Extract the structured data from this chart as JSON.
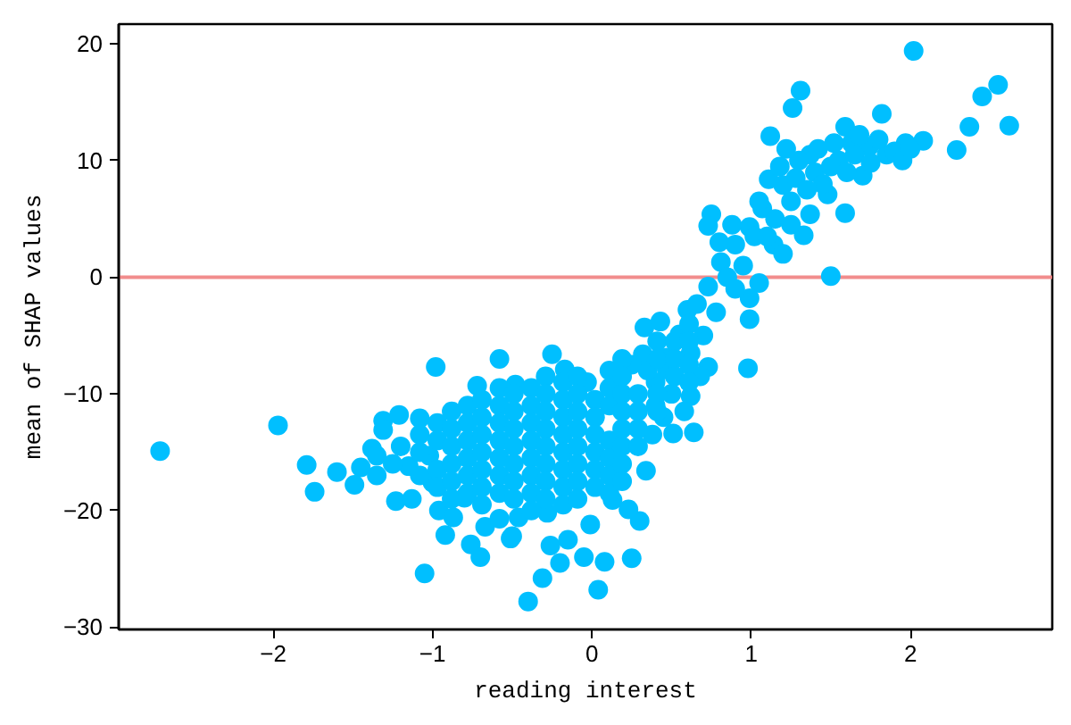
{
  "chart_data": {
    "type": "scatter",
    "xlabel": "reading interest",
    "ylabel": "mean of SHAP values",
    "color": "#00bfff",
    "marker": "circle",
    "grid": false,
    "xlim": [
      -2.97,
      2.89
    ],
    "ylim": [
      -30.2,
      21.7
    ],
    "xticks": [
      {
        "value": -2,
        "label": "−2"
      },
      {
        "value": -1,
        "label": "−1"
      },
      0,
      1,
      2
    ],
    "yticks": [
      {
        "value": -30,
        "label": "−30"
      },
      {
        "value": -20,
        "label": "−20"
      },
      {
        "value": -10,
        "label": "−10"
      },
      0,
      10,
      20
    ],
    "ref_lines": [
      {
        "axis": "y",
        "value": 0,
        "color": "#f08080"
      }
    ],
    "x": [
      -2.71,
      -1.97,
      -1.79,
      -1.74,
      -1.6,
      -1.49,
      -1.45,
      -1.38,
      -1.35,
      -1.35,
      -1.31,
      -1.31,
      -1.23,
      -1.21,
      -1.13,
      -1.15,
      -1.08,
      -1.05,
      -0.98,
      -0.96,
      -0.92,
      -0.87,
      -0.76,
      -0.7,
      -0.67,
      -0.58,
      -0.72,
      -0.51,
      -0.46,
      -0.4,
      -0.48,
      -1.02,
      -1.0,
      -0.8,
      -1.25,
      -1.2,
      -0.25,
      -0.17,
      -0.03,
      -0.31,
      -0.2,
      -0.05,
      0.04,
      0.08,
      0.25,
      -0.15,
      -0.5,
      -0.58,
      -0.28,
      -0.01,
      0.3,
      0.23,
      0.13,
      0.64,
      0.51,
      0.34,
      0.4,
      0.62,
      0.73,
      0.47,
      0.32,
      -0.26,
      2.02,
      2.55,
      2.45,
      2.37,
      2.62,
      2.29,
      2.08,
      1.97,
      1.85,
      1.82,
      1.59,
      1.31,
      1.26,
      1.12,
      1.59,
      1.5,
      0.98,
      0.99,
      0.75,
      0.73,
      1.33,
      1.74,
      1.7,
      1.48,
      1.37,
      1.14,
      1.05,
      0.99,
      0.6,
      1.11,
      1.37,
      1.55,
      1.63,
      1.2,
      1.07,
      0.99,
      0.9,
      0.81,
      0.73,
      0.66,
      0.55,
      0.47,
      0.33,
      0.43,
      0.85,
      0.9,
      0.78,
      0.7,
      0.62,
      0.5,
      0.45,
      0.38,
      0.8,
      0.95,
      0.88,
      1.02,
      1.05,
      1.15,
      1.18,
      1.25,
      1.28,
      1.3,
      1.22,
      1.4,
      1.45,
      1.42,
      1.5,
      1.52,
      1.6,
      1.65,
      1.75,
      1.8,
      1.9,
      1.95,
      2.0,
      1.68,
      1.35,
      1.1,
      1.25,
      1.2,
      0.68,
      0.58,
      0.4,
      0.35,
      0.25,
      -1.08,
      -1.08,
      -1.08,
      -0.97,
      -0.97,
      -0.97,
      -0.97,
      -0.88,
      -0.88,
      -0.88,
      -0.88,
      -0.88,
      -0.88,
      -0.78,
      -0.78,
      -0.78,
      -0.78,
      -0.78,
      -0.78,
      -0.69,
      -0.69,
      -0.69,
      -0.69,
      -0.69,
      -0.69,
      -0.69,
      -0.58,
      -0.58,
      -0.58,
      -0.58,
      -0.58,
      -0.58,
      -0.58,
      -0.49,
      -0.49,
      -0.49,
      -0.49,
      -0.49,
      -0.49,
      -0.49,
      -0.38,
      -0.38,
      -0.38,
      -0.38,
      -0.38,
      -0.38,
      -0.38,
      -0.38,
      -0.29,
      -0.29,
      -0.29,
      -0.29,
      -0.29,
      -0.29,
      -0.29,
      -0.29,
      -0.18,
      -0.18,
      -0.18,
      -0.18,
      -0.18,
      -0.18,
      -0.18,
      -0.18,
      -0.09,
      -0.09,
      -0.09,
      -0.09,
      -0.09,
      -0.09,
      -0.09,
      -0.09,
      0.02,
      0.02,
      0.02,
      0.02,
      0.02,
      0.02,
      0.11,
      0.11,
      0.11,
      0.11,
      0.11,
      0.11,
      0.11,
      0.19,
      0.19,
      0.19,
      0.19,
      0.19,
      0.19,
      0.19,
      0.19,
      0.29,
      0.29,
      0.29,
      0.29,
      0.41,
      0.41,
      0.41,
      0.41,
      0.52,
      0.52,
      0.52,
      0.61,
      0.61,
      0.61,
      0.61
    ],
    "values": [
      -14.9,
      -12.7,
      -16.1,
      -18.4,
      -16.7,
      -17.8,
      -16.3,
      -14.7,
      -17.0,
      -15.3,
      -12.3,
      -13.1,
      -19.2,
      -11.8,
      -19.0,
      -16.2,
      -12.1,
      -25.4,
      -7.7,
      -20.0,
      -22.1,
      -20.6,
      -22.9,
      -24.0,
      -21.4,
      -7.0,
      -9.3,
      -22.4,
      -20.6,
      -27.8,
      -9.2,
      -15.3,
      -17.6,
      -18.9,
      -16.0,
      -14.5,
      -6.6,
      -7.9,
      -9.0,
      -25.8,
      -24.5,
      -24.0,
      -26.8,
      -24.4,
      -24.1,
      -22.5,
      -22.2,
      -20.7,
      -20.2,
      -21.2,
      -20.9,
      -19.9,
      -19.1,
      -13.3,
      -13.4,
      -16.6,
      -11.0,
      -10.2,
      -7.7,
      -7.9,
      -6.6,
      -23.0,
      19.4,
      16.5,
      15.5,
      12.9,
      13.0,
      10.9,
      11.7,
      11.5,
      10.5,
      14.0,
      12.9,
      16.0,
      14.5,
      12.1,
      5.5,
      0.1,
      -7.8,
      -3.6,
      5.4,
      4.4,
      3.6,
      11.2,
      8.7,
      7.1,
      5.4,
      2.8,
      -0.5,
      -1.8,
      -2.8,
      8.4,
      10.5,
      10.0,
      11.5,
      7.9,
      5.9,
      4.3,
      2.8,
      1.3,
      -0.8,
      -2.3,
      -4.9,
      -6.9,
      -4.3,
      -3.8,
      0.0,
      -1.0,
      -3.0,
      -5.0,
      -6.5,
      -10.0,
      -12.0,
      -13.5,
      3.0,
      1.0,
      4.5,
      3.5,
      6.5,
      5.0,
      9.5,
      6.5,
      8.5,
      10.0,
      11.0,
      9.0,
      8.0,
      11.0,
      9.5,
      11.5,
      9.0,
      10.5,
      9.8,
      11.8,
      10.8,
      10.0,
      11.0,
      12.2,
      7.5,
      3.5,
      4.5,
      2.0,
      -8.5,
      -11.5,
      -9.0,
      -8.0,
      -7.5,
      -13.5,
      -15.0,
      -17.0,
      -12.5,
      -14.0,
      -16.5,
      -18.0,
      -11.5,
      -13.0,
      -14.5,
      -16.0,
      -17.5,
      -19.0,
      -11.0,
      -12.5,
      -14.0,
      -15.5,
      -17.0,
      -18.5,
      -10.5,
      -12.0,
      -13.5,
      -15.0,
      -16.5,
      -18.0,
      -19.5,
      -9.5,
      -11.0,
      -12.5,
      -14.0,
      -15.5,
      -17.0,
      -18.5,
      -10.0,
      -11.5,
      -13.0,
      -14.5,
      -16.0,
      -17.5,
      -19.0,
      -9.5,
      -11.0,
      -12.5,
      -14.0,
      -15.5,
      -17.0,
      -18.5,
      -20.0,
      -8.5,
      -10.0,
      -11.5,
      -13.0,
      -14.5,
      -16.0,
      -17.5,
      -19.0,
      -9.0,
      -10.5,
      -12.0,
      -13.5,
      -15.0,
      -16.5,
      -18.0,
      -19.5,
      -8.5,
      -10.0,
      -11.5,
      -13.0,
      -14.5,
      -16.0,
      -17.5,
      -19.0,
      -10.5,
      -12.0,
      -13.5,
      -15.0,
      -16.5,
      -18.0,
      -8.0,
      -9.5,
      -11.0,
      -14.0,
      -15.5,
      -17.0,
      -18.5,
      -7.0,
      -8.5,
      -10.0,
      -11.5,
      -13.0,
      -14.5,
      -16.0,
      -17.5,
      -10.0,
      -11.5,
      -13.0,
      -14.5,
      -5.5,
      -7.0,
      -10.0,
      -11.5,
      -5.5,
      -7.0,
      -8.5,
      -4.0,
      -5.5,
      -7.5,
      -9.0
    ]
  }
}
